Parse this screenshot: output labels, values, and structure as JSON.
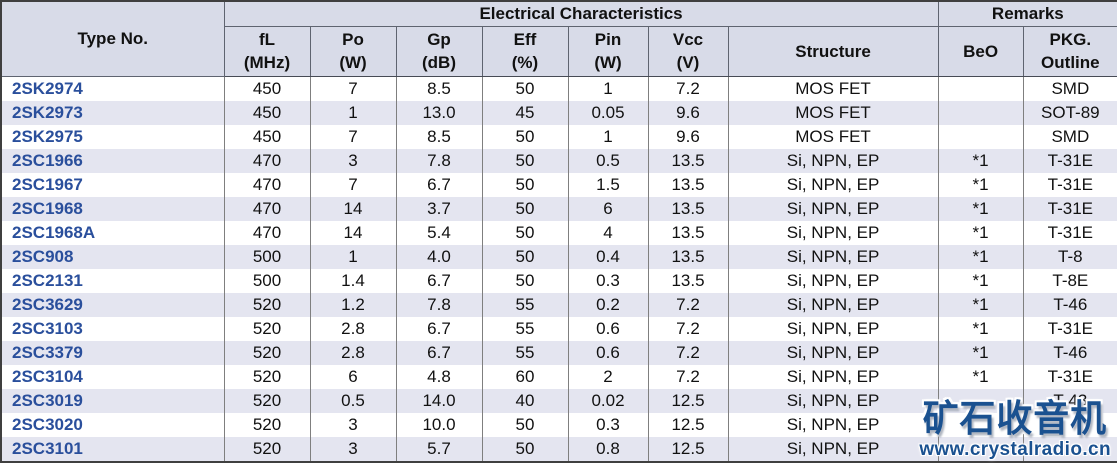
{
  "colors": {
    "header_bg": "#d8dbe8",
    "row_alt_bg": "#e4e5f0",
    "type_no_blue": "#2a4f9c",
    "grid_line": "#7f7f7f",
    "outer_border": "#3f3f3f",
    "watermark_blue": "#1a5190"
  },
  "table": {
    "header": {
      "type_no": "Type No.",
      "electrical_group": "Electrical Characteristics",
      "remarks_group": "Remarks",
      "columns": [
        {
          "key": "fl",
          "name": "fL",
          "unit": "(MHz)"
        },
        {
          "key": "po",
          "name": "Po",
          "unit": "(W)"
        },
        {
          "key": "gp",
          "name": "Gp",
          "unit": "(dB)"
        },
        {
          "key": "eff",
          "name": "Eff",
          "unit": "(%)"
        },
        {
          "key": "pin",
          "name": "Pin",
          "unit": "(W)"
        },
        {
          "key": "vcc",
          "name": "Vcc",
          "unit": "(V)"
        },
        {
          "key": "structure",
          "name": "Structure",
          "unit": ""
        },
        {
          "key": "beo",
          "name": "BeO",
          "unit": ""
        },
        {
          "key": "pkg",
          "name": "PKG.",
          "unit": "Outline"
        }
      ]
    },
    "row_keys": [
      "type_no",
      "fl",
      "po",
      "gp",
      "eff",
      "pin",
      "vcc",
      "structure",
      "beo",
      "pkg"
    ],
    "rows": [
      {
        "type_no": "2SK2974",
        "fl": "450",
        "po": "7",
        "gp": "8.5",
        "eff": "50",
        "pin": "1",
        "vcc": "7.2",
        "structure": "MOS FET",
        "beo": "",
        "pkg": "SMD"
      },
      {
        "type_no": "2SK2973",
        "fl": "450",
        "po": "1",
        "gp": "13.0",
        "eff": "45",
        "pin": "0.05",
        "vcc": "9.6",
        "structure": "MOS FET",
        "beo": "",
        "pkg": "SOT-89"
      },
      {
        "type_no": "2SK2975",
        "fl": "450",
        "po": "7",
        "gp": "8.5",
        "eff": "50",
        "pin": "1",
        "vcc": "9.6",
        "structure": "MOS FET",
        "beo": "",
        "pkg": "SMD"
      },
      {
        "type_no": "2SC1966",
        "fl": "470",
        "po": "3",
        "gp": "7.8",
        "eff": "50",
        "pin": "0.5",
        "vcc": "13.5",
        "structure": "Si, NPN, EP",
        "beo": "*1",
        "pkg": "T-31E"
      },
      {
        "type_no": "2SC1967",
        "fl": "470",
        "po": "7",
        "gp": "6.7",
        "eff": "50",
        "pin": "1.5",
        "vcc": "13.5",
        "structure": "Si, NPN, EP",
        "beo": "*1",
        "pkg": "T-31E"
      },
      {
        "type_no": "2SC1968",
        "fl": "470",
        "po": "14",
        "gp": "3.7",
        "eff": "50",
        "pin": "6",
        "vcc": "13.5",
        "structure": "Si, NPN, EP",
        "beo": "*1",
        "pkg": "T-31E"
      },
      {
        "type_no": "2SC1968A",
        "fl": "470",
        "po": "14",
        "gp": "5.4",
        "eff": "50",
        "pin": "4",
        "vcc": "13.5",
        "structure": "Si, NPN, EP",
        "beo": "*1",
        "pkg": "T-31E"
      },
      {
        "type_no": "2SC908",
        "fl": "500",
        "po": "1",
        "gp": "4.0",
        "eff": "50",
        "pin": "0.4",
        "vcc": "13.5",
        "structure": "Si, NPN, EP",
        "beo": "*1",
        "pkg": "T-8"
      },
      {
        "type_no": "2SC2131",
        "fl": "500",
        "po": "1.4",
        "gp": "6.7",
        "eff": "50",
        "pin": "0.3",
        "vcc": "13.5",
        "structure": "Si, NPN, EP",
        "beo": "*1",
        "pkg": "T-8E"
      },
      {
        "type_no": "2SC3629",
        "fl": "520",
        "po": "1.2",
        "gp": "7.8",
        "eff": "55",
        "pin": "0.2",
        "vcc": "7.2",
        "structure": "Si, NPN, EP",
        "beo": "*1",
        "pkg": "T-46"
      },
      {
        "type_no": "2SC3103",
        "fl": "520",
        "po": "2.8",
        "gp": "6.7",
        "eff": "55",
        "pin": "0.6",
        "vcc": "7.2",
        "structure": "Si, NPN, EP",
        "beo": "*1",
        "pkg": "T-31E"
      },
      {
        "type_no": "2SC3379",
        "fl": "520",
        "po": "2.8",
        "gp": "6.7",
        "eff": "55",
        "pin": "0.6",
        "vcc": "7.2",
        "structure": "Si, NPN, EP",
        "beo": "*1",
        "pkg": "T-46"
      },
      {
        "type_no": "2SC3104",
        "fl": "520",
        "po": "6",
        "gp": "4.8",
        "eff": "60",
        "pin": "2",
        "vcc": "7.2",
        "structure": "Si, NPN, EP",
        "beo": "*1",
        "pkg": "T-31E"
      },
      {
        "type_no": "2SC3019",
        "fl": "520",
        "po": "0.5",
        "gp": "14.0",
        "eff": "40",
        "pin": "0.02",
        "vcc": "12.5",
        "structure": "Si, NPN, EP",
        "beo": "",
        "pkg": "T-43"
      },
      {
        "type_no": "2SC3020",
        "fl": "520",
        "po": "3",
        "gp": "10.0",
        "eff": "50",
        "pin": "0.3",
        "vcc": "12.5",
        "structure": "Si, NPN, EP",
        "beo": "",
        "pkg": ""
      },
      {
        "type_no": "2SC3101",
        "fl": "520",
        "po": "3",
        "gp": "5.7",
        "eff": "50",
        "pin": "0.8",
        "vcc": "12.5",
        "structure": "Si, NPN, EP",
        "beo": "",
        "pkg": ""
      }
    ]
  },
  "watermark": {
    "logo_text": "矿石收音机",
    "url_text": "www.crystalradio.cn"
  }
}
